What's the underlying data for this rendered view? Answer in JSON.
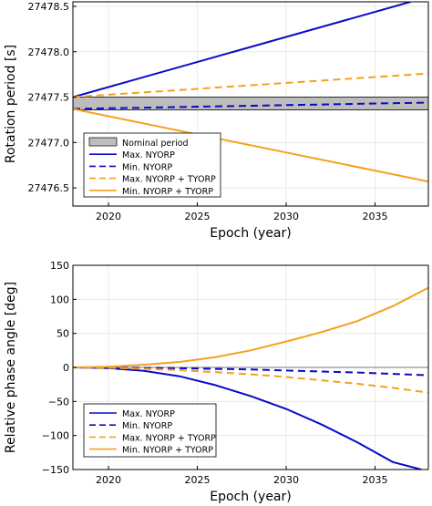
{
  "chart_data": [
    {
      "type": "line",
      "xlabel": "Epoch (year)",
      "ylabel": "Rotation period [s]",
      "xlim": [
        2018,
        2038
      ],
      "ylim": [
        27476.3,
        27478.55
      ],
      "xticks": [
        2020,
        2025,
        2030,
        2035
      ],
      "yticks": [
        27476.5,
        27477.0,
        27477.5,
        27478.0,
        27478.5
      ],
      "ytick_labels": [
        "27476.5",
        "27477.0",
        "27477.5",
        "27478.0",
        "27478.5"
      ],
      "grid": true,
      "legend_position": "bottom-left",
      "nominal_band": {
        "name": "Nominal period",
        "y_range": [
          27477.36,
          27477.5
        ],
        "color": "#bdbdbd"
      },
      "series": [
        {
          "name": "Max. NYORP",
          "color": "#0a0ac8",
          "dash": false,
          "x": [
            2018,
            2037
          ],
          "y": [
            27477.5,
            27478.55
          ]
        },
        {
          "name": "Min. NYORP",
          "color": "#0a0ac8",
          "dash": true,
          "x": [
            2018,
            2038
          ],
          "y": [
            27477.37,
            27477.44
          ]
        },
        {
          "name": "Max. NYORP + TYORP",
          "color": "#f5a11c",
          "dash": true,
          "x": [
            2018,
            2038
          ],
          "y": [
            27477.5,
            27477.76
          ]
        },
        {
          "name": "Min. NYORP + TYORP",
          "color": "#f5a11c",
          "dash": false,
          "x": [
            2018,
            2038
          ],
          "y": [
            27477.37,
            27476.57
          ]
        }
      ]
    },
    {
      "type": "line",
      "xlabel": "Epoch (year)",
      "ylabel": "Relative phase angle [deg]",
      "xlim": [
        2018,
        2038
      ],
      "ylim": [
        -150,
        150
      ],
      "xticks": [
        2020,
        2025,
        2030,
        2035
      ],
      "yticks": [
        -150,
        -100,
        -50,
        0,
        50,
        100,
        150
      ],
      "ytick_labels": [
        "−150",
        "−100",
        "−50",
        "0",
        "50",
        "100",
        "150"
      ],
      "grid": true,
      "legend_position": "bottom-left",
      "series": [
        {
          "name": "Max. NYORP",
          "color": "#0a0ac8",
          "dash": false,
          "x": [
            2018,
            2020,
            2022,
            2024,
            2026,
            2028,
            2030,
            2032,
            2034,
            2036,
            2037.6
          ],
          "y": [
            0,
            -1,
            -5,
            -13,
            -26,
            -42,
            -61,
            -84,
            -110,
            -139,
            -150
          ]
        },
        {
          "name": "Min. NYORP",
          "color": "#0a0ac8",
          "dash": true,
          "x": [
            2018,
            2020,
            2022,
            2024,
            2026,
            2028,
            2030,
            2032,
            2034,
            2036,
            2038
          ],
          "y": [
            0,
            0,
            -0.7,
            -1.2,
            -2.2,
            -3,
            -4.5,
            -6,
            -7.5,
            -9.5,
            -11.5
          ]
        },
        {
          "name": "Max. NYORP + TYORP",
          "color": "#f5a11c",
          "dash": true,
          "x": [
            2018,
            2020,
            2022,
            2024,
            2026,
            2028,
            2030,
            2032,
            2034,
            2036,
            2038
          ],
          "y": [
            0,
            -0.5,
            -2,
            -4,
            -7,
            -10,
            -14,
            -19,
            -24,
            -30,
            -37
          ]
        },
        {
          "name": "Min. NYORP + TYORP",
          "color": "#f5a11c",
          "dash": false,
          "x": [
            2018,
            2020,
            2022,
            2024,
            2026,
            2028,
            2030,
            2032,
            2034,
            2036,
            2038
          ],
          "y": [
            0,
            1,
            4,
            8,
            15,
            25,
            38,
            52,
            68,
            90,
            117
          ]
        }
      ]
    }
  ]
}
